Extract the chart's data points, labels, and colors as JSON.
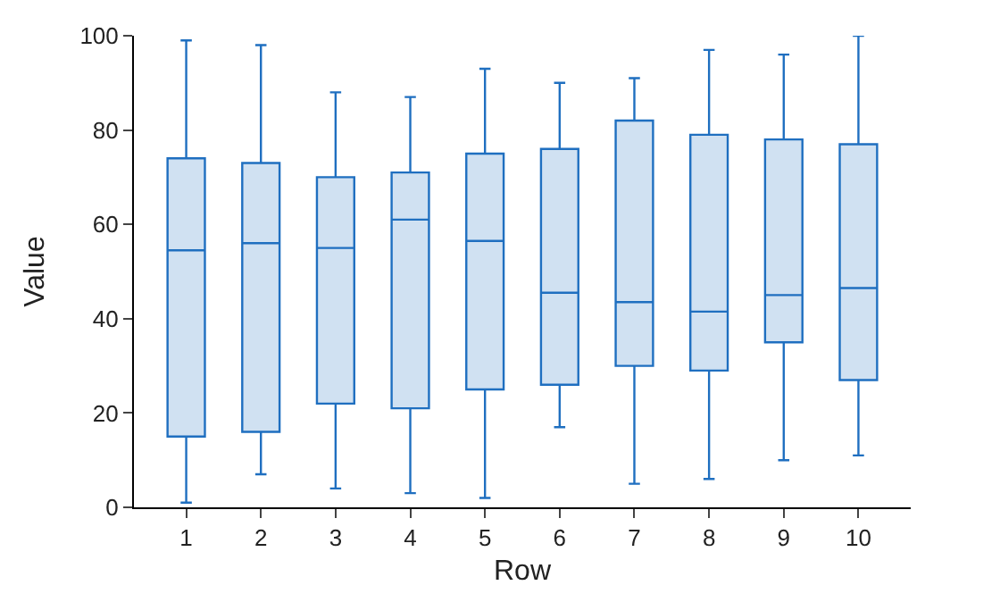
{
  "chart_data": {
    "type": "box",
    "xlabel": "Row",
    "ylabel": "Value",
    "categories": [
      "1",
      "2",
      "3",
      "4",
      "5",
      "6",
      "7",
      "8",
      "9",
      "10"
    ],
    "color": "#1f6fc0",
    "ylim": [
      0,
      100
    ],
    "yticks": [
      0,
      20,
      40,
      60,
      80,
      100
    ],
    "boxes": [
      {
        "low": 1,
        "q1": 15,
        "median": 54.5,
        "q3": 74,
        "high": 99
      },
      {
        "low": 7,
        "q1": 16,
        "median": 56,
        "q3": 73,
        "high": 98
      },
      {
        "low": 4,
        "q1": 22,
        "median": 55,
        "q3": 70,
        "high": 88
      },
      {
        "low": 3,
        "q1": 21,
        "median": 61,
        "q3": 71,
        "high": 87
      },
      {
        "low": 2,
        "q1": 25,
        "median": 56.5,
        "q3": 75,
        "high": 93
      },
      {
        "low": 17,
        "q1": 26,
        "median": 45.5,
        "q3": 76,
        "high": 90
      },
      {
        "low": 5,
        "q1": 30,
        "median": 43.5,
        "q3": 82,
        "high": 91
      },
      {
        "low": 6,
        "q1": 29,
        "median": 41.5,
        "q3": 79,
        "high": 97
      },
      {
        "low": 10,
        "q1": 35,
        "median": 45,
        "q3": 78,
        "high": 96
      },
      {
        "low": 11,
        "q1": 27,
        "median": 46.5,
        "q3": 77,
        "high": 100
      }
    ]
  }
}
